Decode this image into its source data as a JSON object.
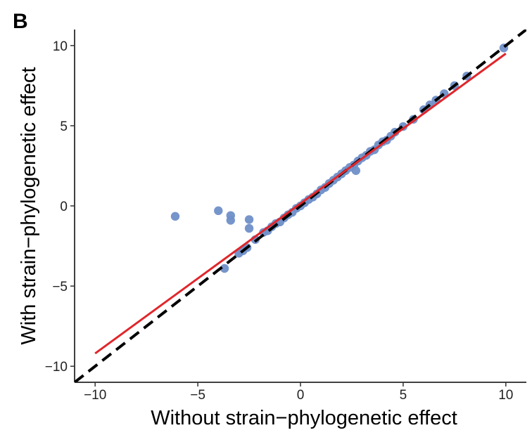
{
  "panel_label": "B",
  "chart_data": {
    "type": "scatter",
    "title": "",
    "xlabel": "Without strain−phylogenetic effect",
    "ylabel": "With strain−phylogenetic effect",
    "xlim": [
      -11,
      11
    ],
    "ylim": [
      -11,
      11
    ],
    "xticks": [
      -10,
      -5,
      0,
      5,
      10
    ],
    "yticks": [
      -10,
      -5,
      0,
      5,
      10
    ],
    "xtick_labels": [
      "−10",
      "−5",
      "0",
      "5",
      "10"
    ],
    "ytick_labels": [
      "−10",
      "−5",
      "0",
      "5",
      "10"
    ],
    "grid": false,
    "legend": "none",
    "point_color": "#6f8fc8",
    "series": [
      {
        "points": [
          [
            -6.1,
            -0.65
          ],
          [
            -4.0,
            -0.3
          ],
          [
            -3.4,
            -0.6
          ],
          [
            -3.4,
            -0.9
          ],
          [
            -2.5,
            -0.85
          ],
          [
            -2.5,
            -1.4
          ],
          [
            -3.7,
            -3.9
          ],
          [
            -3.0,
            -2.95
          ],
          [
            -2.8,
            -2.8
          ],
          [
            -2.6,
            -2.6
          ],
          [
            -2.2,
            -2.1
          ],
          [
            -1.8,
            -1.65
          ],
          [
            -1.6,
            -1.55
          ],
          [
            -1.4,
            -1.3
          ],
          [
            -1.2,
            -1.1
          ],
          [
            -1.0,
            -1.0
          ],
          [
            -0.8,
            -0.75
          ],
          [
            -0.6,
            -0.55
          ],
          [
            -0.4,
            -0.4
          ],
          [
            -0.2,
            -0.15
          ],
          [
            0.0,
            0.0
          ],
          [
            0.2,
            0.2
          ],
          [
            0.4,
            0.4
          ],
          [
            0.6,
            0.55
          ],
          [
            0.8,
            0.75
          ],
          [
            1.0,
            1.0
          ],
          [
            1.2,
            1.15
          ],
          [
            1.4,
            1.4
          ],
          [
            1.6,
            1.6
          ],
          [
            1.8,
            1.8
          ],
          [
            2.0,
            2.0
          ],
          [
            2.2,
            2.2
          ],
          [
            2.4,
            2.4
          ],
          [
            2.6,
            2.55
          ],
          [
            2.7,
            2.2
          ],
          [
            2.8,
            2.8
          ],
          [
            3.0,
            3.0
          ],
          [
            3.2,
            3.15
          ],
          [
            3.4,
            3.4
          ],
          [
            3.6,
            3.5
          ],
          [
            3.8,
            3.8
          ],
          [
            4.0,
            4.0
          ],
          [
            4.2,
            4.1
          ],
          [
            4.4,
            4.35
          ],
          [
            4.6,
            4.6
          ],
          [
            5.0,
            4.95
          ],
          [
            5.5,
            5.4
          ],
          [
            6.0,
            6.0
          ],
          [
            6.3,
            6.3
          ],
          [
            6.6,
            6.6
          ],
          [
            7.0,
            7.0
          ],
          [
            7.5,
            7.5
          ],
          [
            8.1,
            8.1
          ],
          [
            9.9,
            9.85
          ]
        ]
      }
    ],
    "reference_line": {
      "style": "dashed",
      "color": "#000000",
      "slope": 1,
      "intercept": 0
    },
    "fit_line": {
      "color": "#e0262b",
      "x_range": [
        -10,
        10
      ],
      "y_range": [
        -9.2,
        9.5
      ]
    }
  }
}
